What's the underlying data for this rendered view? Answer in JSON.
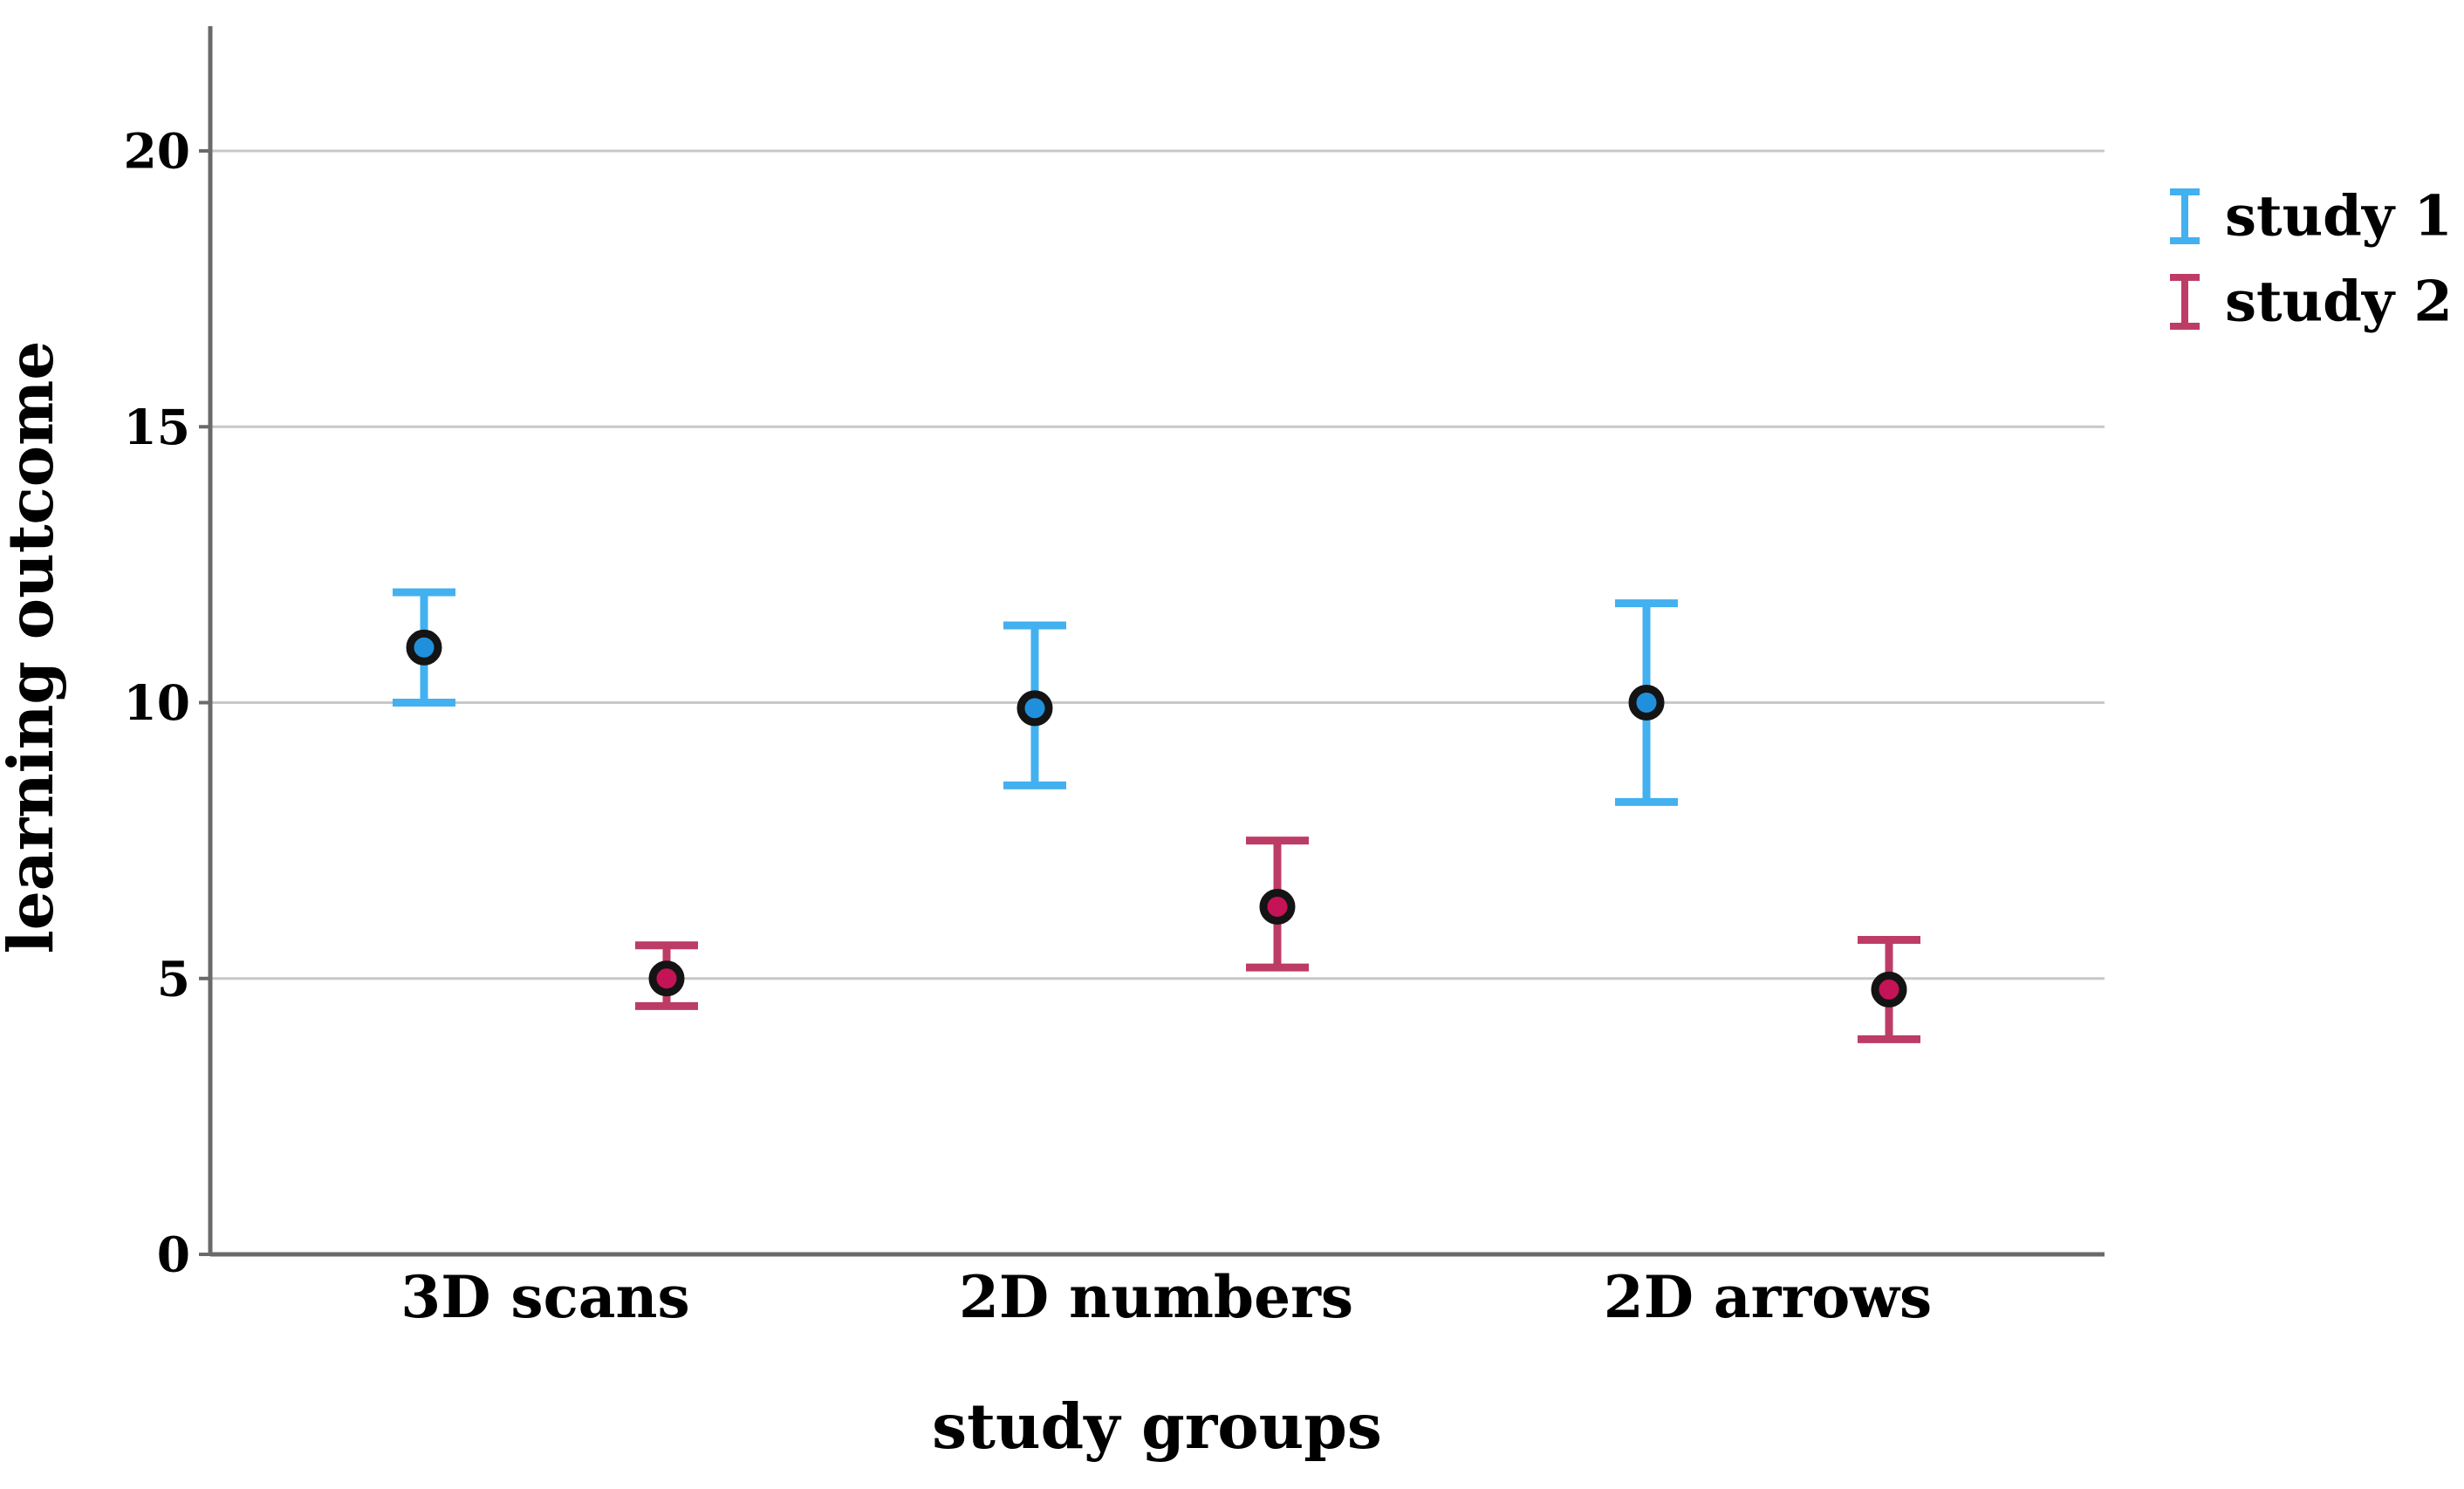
{
  "chart_data": {
    "type": "scatter",
    "subtype": "dodged point estimates with error bars (confidence intervals)",
    "title": "",
    "xlabel": "study groups",
    "ylabel": "learning outcome",
    "categories": [
      "3D scans",
      "2D numbers",
      "2D arrows"
    ],
    "y_ticks": [
      0,
      5,
      10,
      15,
      20
    ],
    "ylim": [
      0,
      22
    ],
    "grid": "horizontal gridlines at labeled y ticks, no vertical grid",
    "legend_position": "outside top-right",
    "series": [
      {
        "name": "study 1",
        "color": "#43B0F0",
        "marker_color": "#2090DC",
        "marker_edge_color": "#141414",
        "points": [
          {
            "category": "3D scans",
            "mean": 11.0,
            "ci_low": 10.0,
            "ci_high": 12.0
          },
          {
            "category": "2D numbers",
            "mean": 9.9,
            "ci_low": 8.5,
            "ci_high": 11.4
          },
          {
            "category": "2D arrows",
            "mean": 10.0,
            "ci_low": 8.2,
            "ci_high": 11.8
          }
        ]
      },
      {
        "name": "study 2",
        "color": "#BD3C66",
        "marker_color": "#C41356",
        "marker_edge_color": "#141414",
        "points": [
          {
            "category": "3D scans",
            "mean": 5.0,
            "ci_low": 4.5,
            "ci_high": 5.6
          },
          {
            "category": "2D numbers",
            "mean": 6.3,
            "ci_low": 5.2,
            "ci_high": 7.5
          },
          {
            "category": "2D arrows",
            "mean": 4.8,
            "ci_low": 3.9,
            "ci_high": 5.7
          }
        ]
      }
    ]
  },
  "legend": {
    "items": [
      {
        "label": "study 1",
        "color": "#43B0F0"
      },
      {
        "label": "study 2",
        "color": "#BD3C66"
      }
    ]
  },
  "axes": {
    "grid_color": "#C8C8C8",
    "axis_color": "#6A6A6A",
    "text_color": "#000000",
    "background": "#FFFFFF"
  }
}
